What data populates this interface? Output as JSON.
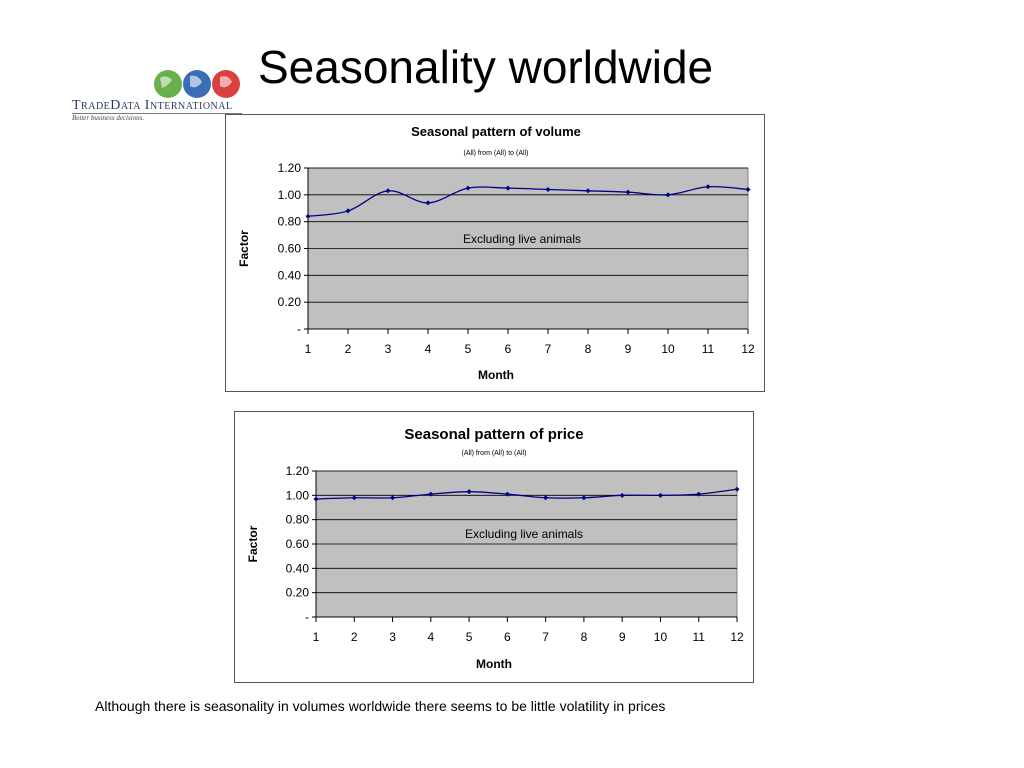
{
  "slide": {
    "title": "Seasonality worldwide",
    "caption": "Although there is seasonality in volumes worldwide there seems to be little volatility in  prices"
  },
  "logo": {
    "name_prefix": "TradeData",
    "name_suffix": "International",
    "tagline": "Better business decisions.",
    "globe_colors": [
      "#6ab04c",
      "#3a6fb5",
      "#d94040"
    ]
  },
  "chart_data": [
    {
      "type": "line",
      "title": "Seasonal pattern of volume",
      "subtitle": "(All) from (All) to (All)",
      "xlabel": "Month",
      "ylabel": "Factor",
      "annotation": "Excluding live animals",
      "x": [
        1,
        2,
        3,
        4,
        5,
        6,
        7,
        8,
        9,
        10,
        11,
        12
      ],
      "series": [
        {
          "values": [
            0.84,
            0.88,
            1.03,
            0.94,
            1.05,
            1.05,
            1.04,
            1.03,
            1.02,
            1.0,
            1.06,
            1.04
          ],
          "color": "#00008b"
        }
      ],
      "ylim": [
        0,
        1.2
      ],
      "yticks": [
        0,
        0.2,
        0.4,
        0.6,
        0.8,
        1.0,
        1.2
      ],
      "ytick_labels": [
        "-",
        "0.20",
        "0.40",
        "0.60",
        "0.80",
        "1.00",
        "1.20"
      ],
      "grid": true,
      "plot_background": "#c0c0c0"
    },
    {
      "type": "line",
      "title": "Seasonal pattern of price",
      "subtitle": "(All) from (All) to (All)",
      "xlabel": "Month",
      "ylabel": "Factor",
      "annotation": "Excluding live animals",
      "x": [
        1,
        2,
        3,
        4,
        5,
        6,
        7,
        8,
        9,
        10,
        11,
        12
      ],
      "series": [
        {
          "values": [
            0.97,
            0.98,
            0.98,
            1.01,
            1.03,
            1.01,
            0.98,
            0.98,
            1.0,
            1.0,
            1.01,
            1.05
          ],
          "color": "#00008b"
        }
      ],
      "ylim": [
        0,
        1.2
      ],
      "yticks": [
        0,
        0.2,
        0.4,
        0.6,
        0.8,
        1.0,
        1.2
      ],
      "ytick_labels": [
        "-",
        "0.20",
        "0.40",
        "0.60",
        "0.80",
        "1.00",
        "1.20"
      ],
      "grid": true,
      "plot_background": "#c0c0c0"
    }
  ]
}
